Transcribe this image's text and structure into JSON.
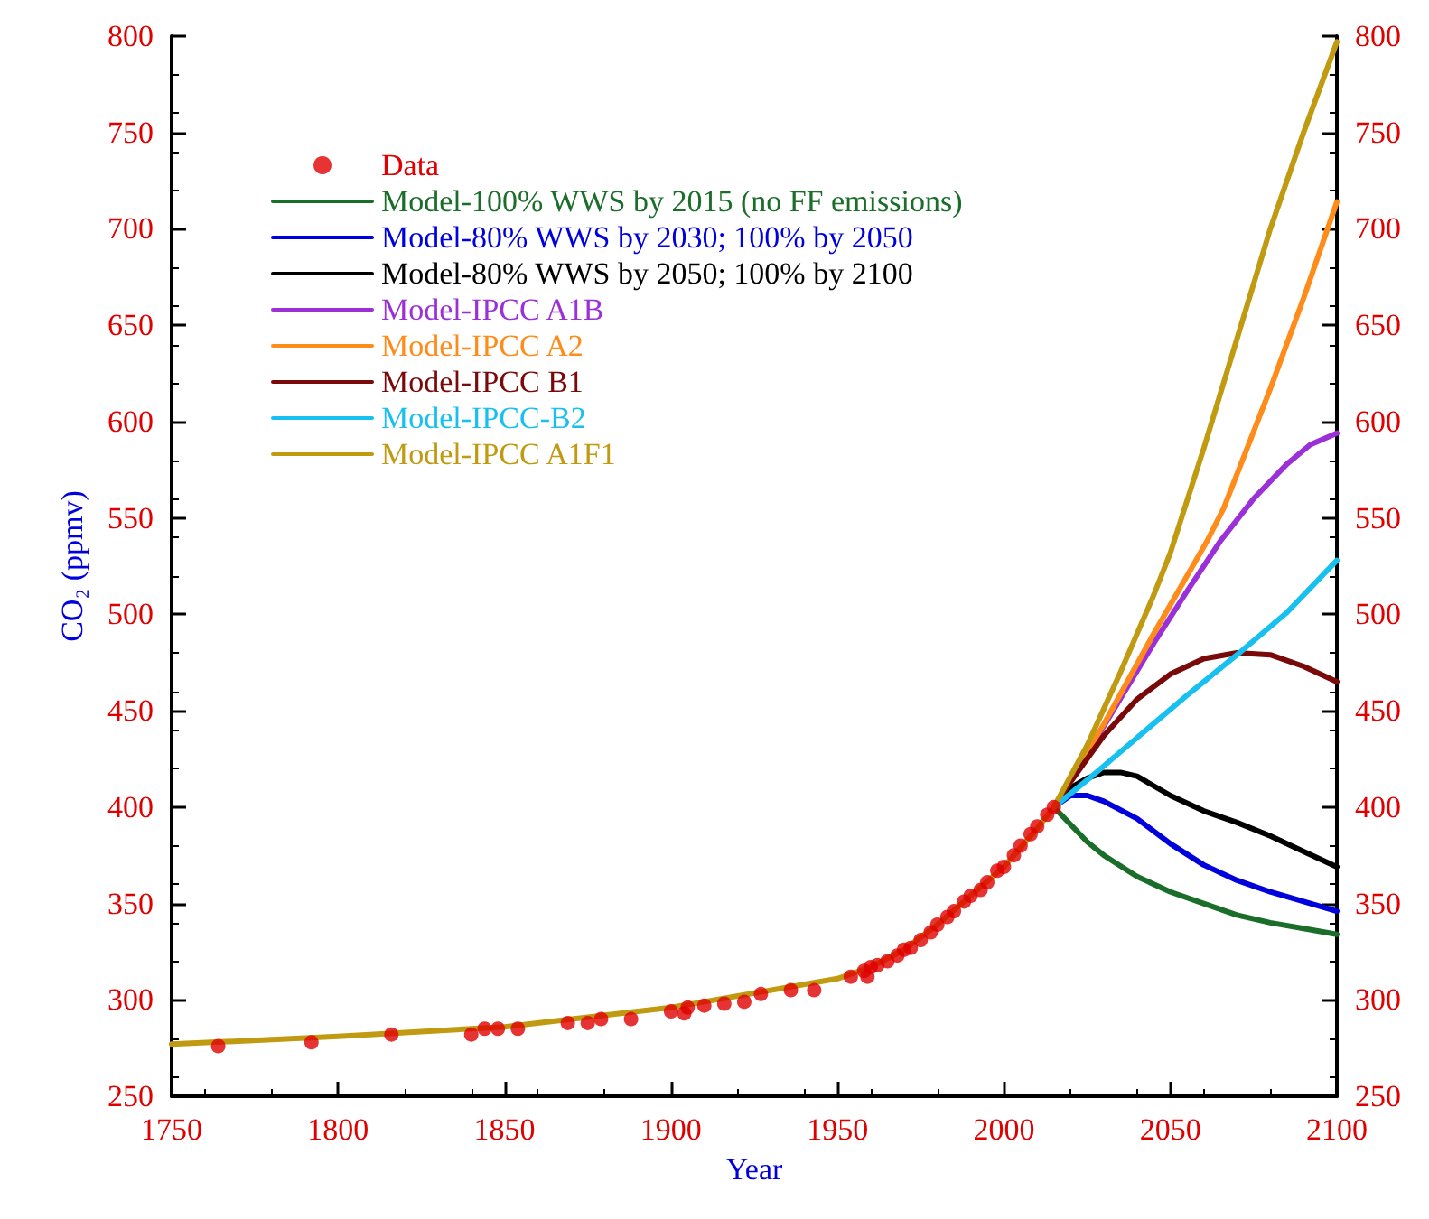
{
  "chart_data": {
    "type": "line",
    "xlabel": "Year",
    "ylabel": "CO₂ (ppmv)",
    "xlim": [
      1750,
      2100
    ],
    "xticks": [
      1750,
      1800,
      1850,
      1900,
      1950,
      2000,
      2050,
      2100
    ],
    "ylim": [
      250,
      800
    ],
    "yticks": [
      250,
      300,
      350,
      400,
      450,
      500,
      550,
      600,
      650,
      700,
      750,
      800
    ],
    "y2lim": [
      250,
      800
    ],
    "y2ticks": [
      250,
      300,
      350,
      400,
      450,
      500,
      550,
      600,
      650,
      700,
      750,
      800
    ],
    "grid": false,
    "legend": "top left",
    "line_style": "solid",
    "marker": "none",
    "series": [
      {
        "name": "Data",
        "type": "scatter",
        "marker": "circle",
        "color": "#e00000",
        "x": [
          1764,
          1792,
          1816,
          1840,
          1844,
          1848,
          1854,
          1869,
          1875,
          1879,
          1888,
          1900,
          1904,
          1905,
          1910,
          1916,
          1922,
          1927,
          1936,
          1943,
          1954,
          1958,
          1959,
          1960,
          1962,
          1965,
          1968,
          1970,
          1972,
          1975,
          1978,
          1980,
          1983,
          1985,
          1988,
          1990,
          1993,
          1995,
          1998,
          2000,
          2003,
          2005,
          2008,
          2010,
          2013,
          2015
        ],
        "values": [
          276,
          278,
          282,
          282,
          285,
          285,
          285,
          288,
          288,
          290,
          290,
          294,
          293,
          296,
          297,
          298,
          299,
          303,
          305,
          305,
          312,
          315,
          312,
          317,
          318,
          320,
          323,
          326,
          327,
          331,
          335,
          339,
          343,
          346,
          351,
          354,
          357,
          361,
          367,
          369,
          375,
          380,
          386,
          390,
          396,
          400
        ]
      },
      {
        "name": "Model-100% WWS by 2015 (no FF emissions)",
        "color": "#1a6e2a",
        "x": [
          2015,
          2020,
          2025,
          2030,
          2040,
          2050,
          2060,
          2070,
          2080,
          2090,
          2100
        ],
        "values": [
          400,
          391,
          382,
          375,
          364,
          356,
          350,
          344,
          340,
          337,
          334
        ]
      },
      {
        "name": "Model-80% WWS by 2030; 100% by 2050",
        "color": "#0000dd",
        "x": [
          2015,
          2020,
          2025,
          2030,
          2040,
          2050,
          2060,
          2070,
          2080,
          2090,
          2100
        ],
        "values": [
          400,
          406,
          406,
          403,
          394,
          381,
          370,
          362,
          356,
          351,
          346
        ]
      },
      {
        "name": "Model-80% WWS by 2050; 100% by 2100",
        "color": "#000000",
        "x": [
          2015,
          2020,
          2025,
          2030,
          2035,
          2040,
          2050,
          2060,
          2070,
          2080,
          2090,
          2100
        ],
        "values": [
          400,
          410,
          415,
          418,
          418,
          416,
          406,
          398,
          392,
          385,
          377,
          369
        ]
      },
      {
        "name": "Model-IPCC A1B",
        "color": "#9b30d9",
        "x": [
          2015,
          2030,
          2045,
          2055,
          2065,
          2075,
          2085,
          2092,
          2100
        ],
        "values": [
          400,
          442,
          485,
          512,
          538,
          560,
          578,
          588,
          594
        ]
      },
      {
        "name": "Model-IPCC A2",
        "color": "#ff8c1a",
        "x": [
          2015,
          2030,
          2045,
          2055,
          2061,
          2066,
          2080,
          2090,
          2100
        ],
        "values": [
          400,
          443,
          490,
          520,
          538,
          555,
          617,
          664,
          714
        ]
      },
      {
        "name": "Model-IPCC B1",
        "color": "#7a0a0a",
        "x": [
          2015,
          2020,
          2030,
          2040,
          2050,
          2060,
          2070,
          2080,
          2090,
          2100
        ],
        "values": [
          400,
          413,
          437,
          456,
          469,
          477,
          480,
          479,
          473,
          465
        ]
      },
      {
        "name": "Model-IPCC-B2",
        "color": "#18c0f0",
        "x": [
          2015,
          2025,
          2040,
          2055,
          2070,
          2085,
          2100
        ],
        "values": [
          400,
          414,
          436,
          458,
          479,
          501,
          528
        ]
      },
      {
        "name": "Model-IPCC A1F1",
        "color": "#c09a10",
        "x": [
          1750,
          1800,
          1850,
          1900,
          1950,
          1960,
          1970,
          1980,
          1990,
          2000,
          2010,
          2015,
          2025,
          2035,
          2045,
          2050,
          2060,
          2070,
          2080,
          2090,
          2100
        ],
        "values": [
          277,
          281,
          286,
          296,
          311,
          317,
          326,
          339,
          354,
          369,
          389,
          400,
          432,
          470,
          510,
          532,
          586,
          643,
          700,
          750,
          797
        ]
      }
    ]
  }
}
